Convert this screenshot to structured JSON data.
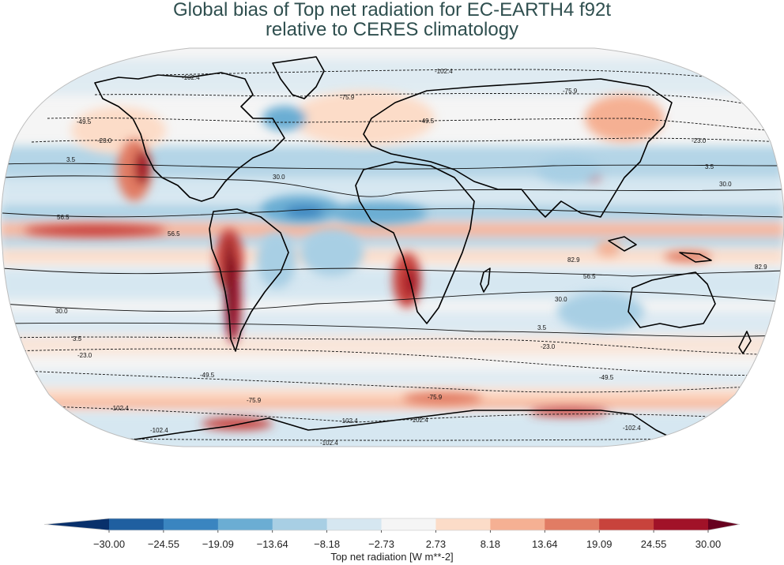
{
  "chart_data": {
    "type": "heatmap",
    "subtype": "filled-contour map (Robinson projection) with overlaid climatology contour lines",
    "title": "Global bias of Top net radiation for EC-EARTH4 f92t relative to CERES climatology",
    "title_lines": [
      "Global bias of Top net radiation for EC-EARTH4 f92t",
      "relative to CERES climatology"
    ],
    "colorbar": {
      "label": "Top net radiation [W m**-2]",
      "ticks": [
        "−30.00",
        "−24.55",
        "−19.09",
        "−13.64",
        "−8.18",
        "−2.73",
        "2.73",
        "8.18",
        "13.64",
        "19.09",
        "24.55",
        "30.00"
      ],
      "tick_values": [
        -30.0,
        -24.55,
        -19.09,
        -13.64,
        -8.18,
        -2.73,
        2.73,
        8.18,
        13.64,
        19.09,
        24.55,
        30.0
      ],
      "range": [
        -30,
        30
      ],
      "extend": "both",
      "colormap": "RdBu_r",
      "colors": [
        "#08306b",
        "#1f5fa0",
        "#3a85c0",
        "#6badd3",
        "#a8cfe4",
        "#d6e7f1",
        "#f5f5f5",
        "#fcdcc8",
        "#f5b093",
        "#e17c64",
        "#c8433c",
        "#a11228",
        "#67001f"
      ]
    },
    "contour_levels": [
      -102.4,
      -75.9,
      -49.5,
      -23.0,
      3.5,
      30.0,
      56.5,
      82.9
    ],
    "contour_style": {
      "negative": "dashed",
      "positive": "solid"
    },
    "contour_labels_visible": [
      "-102.4",
      "-75.9",
      "-49.5",
      "-23.0",
      "3.5",
      "30.0",
      "56.5",
      "82.9"
    ],
    "notable_regions": [
      {
        "region": "Eastern subtropical Pacific (off California)",
        "bias": "positive, up to >30"
      },
      {
        "region": "Peru/Chile coast (Humboldt stratocumulus)",
        "bias": "positive, >30"
      },
      {
        "region": "Namibia/Angola coast (Benguela)",
        "bias": "positive, ~20-30"
      },
      {
        "region": "Tropical North Atlantic",
        "bias": "negative, ~-13 to -25"
      },
      {
        "region": "Southern Ocean ~60S",
        "bias": "positive, ~8-25"
      },
      {
        "region": "Antarctic coast",
        "bias": "positive, up to ~30"
      },
      {
        "region": "Tibetan Plateau / Himalaya edge",
        "bias": "mixed, local positive ~25"
      },
      {
        "region": "Tropical Pacific ITCZ bands",
        "bias": "alternating positive/negative ~±10"
      }
    ],
    "projection": "Robinson",
    "grid": false
  }
}
